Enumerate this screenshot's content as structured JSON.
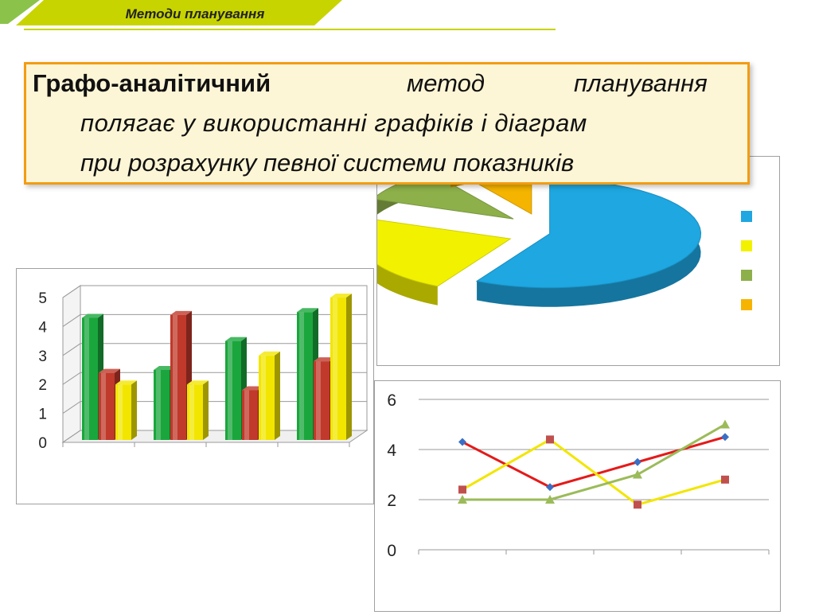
{
  "header": {
    "title": "Методи планування",
    "accent_color": "#c8d400"
  },
  "definition": {
    "term": "Графо-аналітичний",
    "word_method": "метод",
    "word_planning": "планування",
    "line2": "полягає у використанні графіків і діаграм",
    "line3": "при розрахунку певної системи показників"
  },
  "chart_data": [
    {
      "type": "bar",
      "categories": [
        "",
        "",
        "",
        ""
      ],
      "series": [
        {
          "color": "#1aa63c",
          "values": [
            4.3,
            2.5,
            3.5,
            4.5
          ]
        },
        {
          "color": "#c0392b",
          "values": [
            2.4,
            4.4,
            1.8,
            2.8
          ]
        },
        {
          "color": "#f2e600",
          "values": [
            2.0,
            2.0,
            3.0,
            5.0
          ]
        }
      ],
      "ylim": [
        0,
        5
      ],
      "yticks": [
        "0",
        "1",
        "2",
        "3",
        "4",
        "5"
      ],
      "grid": true
    },
    {
      "type": "pie",
      "style": "3d-exploded",
      "slices": [
        {
          "value": 58,
          "color": "#1ea7e1"
        },
        {
          "value": 23,
          "color": "#f2f200"
        },
        {
          "value": 10,
          "color": "#8db04a"
        },
        {
          "value": 9,
          "color": "#f5b400"
        }
      ],
      "legend_position": "right",
      "legend_labels": [
        "",
        "",
        "",
        ""
      ]
    },
    {
      "type": "line",
      "x": [
        1,
        2,
        3,
        4
      ],
      "series": [
        {
          "color": "#e41a1a",
          "marker": "diamond",
          "marker_color": "#3a6fc4",
          "values": [
            4.3,
            2.5,
            3.5,
            4.5
          ]
        },
        {
          "color": "#f2e600",
          "marker": "square",
          "marker_color": "#c0504d",
          "values": [
            2.4,
            4.4,
            1.8,
            2.8
          ]
        },
        {
          "color": "#9bbb59",
          "marker": "triangle",
          "marker_color": "#9bbb59",
          "values": [
            2.0,
            2.0,
            3.0,
            5.0
          ]
        }
      ],
      "ylim": [
        0,
        6
      ],
      "yticks": [
        "0",
        "2",
        "4",
        "6"
      ],
      "grid": true
    }
  ]
}
